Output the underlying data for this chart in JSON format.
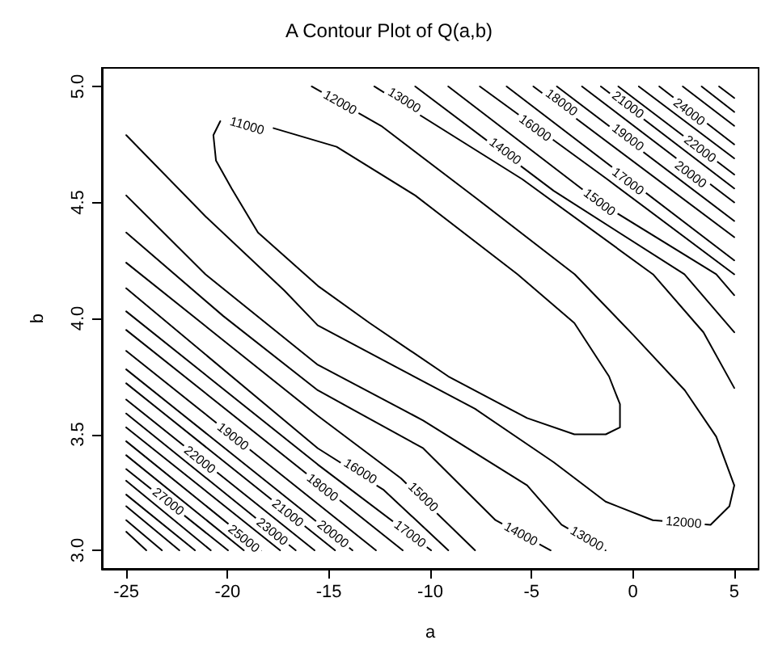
{
  "chart_data": {
    "type": "line",
    "title": "A Contour Plot of Q(a,b)",
    "xlabel": "a",
    "ylabel": "b",
    "xlim": [
      -26.2,
      6.2
    ],
    "ylim": [
      2.92,
      5.08
    ],
    "xticks": [
      -25,
      -20,
      -15,
      -10,
      -5,
      0,
      5
    ],
    "yticks": [
      {
        "value": 3,
        "label": "3.0"
      },
      {
        "value": 3.5,
        "label": "3.5"
      },
      {
        "value": 4,
        "label": "4.0"
      },
      {
        "value": 4.5,
        "label": "4.5"
      },
      {
        "value": 5,
        "label": "5.0"
      }
    ],
    "grid": false,
    "marker": "none",
    "line_style": "solid",
    "series": [
      {
        "color": "#000000",
        "x": [
          -17.73,
          -14.62,
          -10.74,
          -5.69,
          -2.89,
          -1.18,
          -0.64,
          -0.64,
          -1.34,
          -2.89,
          -5.22,
          -9.11,
          -12.99,
          -15.54,
          -18.5,
          -19.8,
          -20.57,
          -20.7,
          -20.36
        ],
        "values": [
          4.82,
          4.74,
          4.53,
          4.19,
          3.98,
          3.75,
          3.63,
          3.53,
          3.5,
          3.5,
          3.57,
          3.75,
          3.98,
          4.14,
          4.37,
          4.56,
          4.68,
          4.79,
          4.85
        ]
      },
      {
        "color": "#000000",
        "x": [
          -15.85,
          -12.42,
          -7.76,
          -2.87,
          0.0,
          2.56,
          4.11,
          5.0
        ],
        "values": [
          5.0,
          4.83,
          4.52,
          4.19,
          3.93,
          3.69,
          3.49,
          3.28
        ]
      },
      {
        "color": "#000000",
        "x": [
          -25,
          -21.09,
          -17.2,
          -15.55,
          -11.67,
          -7.79,
          -3.91,
          -1.35,
          0.98,
          3.83,
          4.76,
          5.0
        ],
        "values": [
          4.79,
          4.44,
          4.12,
          3.97,
          3.79,
          3.61,
          3.38,
          3.21,
          3.13,
          3.11,
          3.19,
          3.28
        ]
      },
      {
        "color": "#000000",
        "x": [
          -12.76,
          -5.46,
          0.99,
          3.48,
          5.0
        ],
        "values": [
          5.0,
          4.6,
          4.19,
          3.94,
          3.7
        ]
      },
      {
        "color": "#000000",
        "x": [
          -25,
          -21.09,
          -15.55,
          -10.35,
          -5.22,
          -3.52,
          -1.35
        ],
        "values": [
          4.53,
          4.19,
          3.8,
          3.56,
          3.28,
          3.11,
          3.0
        ]
      },
      {
        "color": "#000000",
        "x": [
          -10.74,
          -3.91,
          2.54,
          5.0
        ],
        "values": [
          5.0,
          4.55,
          4.19,
          3.94
        ]
      },
      {
        "color": "#000000",
        "x": [
          -25,
          -20.21,
          -15.55,
          -10.35,
          -6.78,
          -4.06
        ],
        "values": [
          4.37,
          4.01,
          3.69,
          3.44,
          3.13,
          3.0
        ]
      },
      {
        "color": "#000000",
        "x": [
          -9.11,
          -1.65,
          4.11,
          5.0
        ],
        "values": [
          5.0,
          4.5,
          4.19,
          4.1
        ]
      },
      {
        "color": "#000000",
        "x": [
          -25,
          -15.55,
          -11.44,
          -7.79
        ],
        "values": [
          4.24,
          3.58,
          3.31,
          3.0
        ]
      },
      {
        "color": "#000000",
        "x": [
          -7.55,
          -1.27,
          5.0
        ],
        "values": [
          5.0,
          4.6,
          4.19
        ]
      },
      {
        "color": "#000000",
        "x": [
          -25,
          -15.55,
          -12.29,
          -9.11
        ],
        "values": [
          4.13,
          3.44,
          3.26,
          3.0
        ]
      },
      {
        "color": "#000000",
        "x": [
          -6.23,
          5.0
        ],
        "values": [
          5.0,
          4.25
        ]
      },
      {
        "color": "#000000",
        "x": [
          -25,
          -15.55,
          -9.96
        ],
        "values": [
          4.03,
          3.37,
          3.0
        ]
      },
      {
        "color": "#000000",
        "x": [
          -4.91,
          5.0
        ],
        "values": [
          5.0,
          4.35
        ]
      },
      {
        "color": "#000000",
        "x": [
          -25,
          -11.36
        ],
        "values": [
          3.95,
          3.0
        ]
      },
      {
        "color": "#000000",
        "x": [
          -3.75,
          5.0
        ],
        "values": [
          5.0,
          4.42
        ]
      },
      {
        "color": "#000000",
        "x": [
          -25,
          -12.68
        ],
        "values": [
          3.86,
          3.0
        ]
      },
      {
        "color": "#000000",
        "x": [
          -2.51,
          5.0
        ],
        "values": [
          5.0,
          4.5
        ]
      },
      {
        "color": "#000000",
        "x": [
          -25,
          -13.84
        ],
        "values": [
          3.78,
          3.0
        ]
      },
      {
        "color": "#000000",
        "x": [
          -1.58,
          5.0
        ],
        "values": [
          5.0,
          4.56
        ]
      },
      {
        "color": "#000000",
        "x": [
          -25,
          -14.7
        ],
        "values": [
          3.72,
          3.0
        ]
      },
      {
        "color": "#000000",
        "x": [
          -0.72,
          5.0
        ],
        "values": [
          5.0,
          4.62
        ]
      },
      {
        "color": "#000000",
        "x": [
          -25,
          -15.71
        ],
        "values": [
          3.65,
          3.0
        ]
      },
      {
        "color": "#000000",
        "x": [
          0.29,
          5.0
        ],
        "values": [
          5.0,
          4.69
        ]
      },
      {
        "color": "#000000",
        "x": [
          -25,
          -16.64
        ],
        "values": [
          3.59,
          3.0
        ]
      },
      {
        "color": "#000000",
        "x": [
          1.3,
          5.0
        ],
        "values": [
          5.0,
          4.75
        ]
      },
      {
        "color": "#000000",
        "x": [
          -25,
          -17.41
        ],
        "values": [
          3.53,
          3.0
        ]
      },
      {
        "color": "#000000",
        "x": [
          2.46,
          5.0
        ],
        "values": [
          5.0,
          4.83
        ]
      },
      {
        "color": "#000000",
        "x": [
          -25,
          -18.35
        ],
        "values": [
          3.47,
          3.0
        ]
      },
      {
        "color": "#000000",
        "x": [
          3.39,
          5.0
        ],
        "values": [
          5.0,
          4.89
        ]
      },
      {
        "color": "#000000",
        "x": [
          -25,
          -19.2
        ],
        "values": [
          3.41,
          3.0
        ]
      },
      {
        "color": "#000000",
        "x": [
          4.25,
          5.0
        ],
        "values": [
          5.0,
          4.95
        ]
      },
      {
        "color": "#000000",
        "x": [
          -25,
          -19.98
        ],
        "values": [
          3.35,
          3.0
        ]
      },
      {
        "color": "#000000",
        "x": [
          -25,
          -20.83
        ],
        "values": [
          3.3,
          3.0
        ]
      },
      {
        "color": "#000000",
        "x": [
          -25,
          -21.61
        ],
        "values": [
          3.24,
          3.0
        ]
      },
      {
        "color": "#000000",
        "x": [
          -25,
          -22.38
        ],
        "values": [
          3.19,
          3.0
        ]
      },
      {
        "color": "#000000",
        "x": [
          -25,
          -23.24
        ],
        "values": [
          3.13,
          3.0
        ]
      },
      {
        "color": "#000000",
        "x": [
          -25,
          -24.01
        ],
        "values": [
          3.08,
          3.0
        ]
      }
    ],
    "annotations": [
      {
        "text": "11000",
        "x": -19.04,
        "y": 4.83
      },
      {
        "text": "12000",
        "x": -14.45,
        "y": 4.93
      },
      {
        "text": "13000",
        "x": -11.28,
        "y": 4.94
      },
      {
        "text": "14000",
        "x": -6.3,
        "y": 4.72
      },
      {
        "text": "15000",
        "x": -1.65,
        "y": 4.5
      },
      {
        "text": "16000",
        "x": -4.83,
        "y": 4.82
      },
      {
        "text": "17000",
        "x": -0.25,
        "y": 4.59
      },
      {
        "text": "18000",
        "x": -3.52,
        "y": 4.93
      },
      {
        "text": "19000",
        "x": -0.25,
        "y": 4.78
      },
      {
        "text": "20000",
        "x": 2.85,
        "y": 4.62
      },
      {
        "text": "21000",
        "x": -0.25,
        "y": 4.92
      },
      {
        "text": "22000",
        "x": 3.31,
        "y": 4.73
      },
      {
        "text": "24000",
        "x": 2.77,
        "y": 4.89
      },
      {
        "text": "12000",
        "x": 2.5,
        "y": 3.12
      },
      {
        "text": "13000",
        "x": -2.27,
        "y": 3.05
      },
      {
        "text": "14000",
        "x": -5.53,
        "y": 3.07
      },
      {
        "text": "15000",
        "x": -10.35,
        "y": 3.23
      },
      {
        "text": "16000",
        "x": -13.45,
        "y": 3.34
      },
      {
        "text": "17000",
        "x": -11.0,
        "y": 3.07
      },
      {
        "text": "18000",
        "x": -15.32,
        "y": 3.27
      },
      {
        "text": "19000",
        "x": -19.74,
        "y": 3.49
      },
      {
        "text": "20000",
        "x": -14.8,
        "y": 3.07
      },
      {
        "text": "21000",
        "x": -17.03,
        "y": 3.16
      },
      {
        "text": "22000",
        "x": -21.37,
        "y": 3.39
      },
      {
        "text": "23000",
        "x": -17.8,
        "y": 3.08
      },
      {
        "text": "25000",
        "x": -19.2,
        "y": 3.05
      },
      {
        "text": "27000",
        "x": -22.93,
        "y": 3.21
      }
    ]
  }
}
